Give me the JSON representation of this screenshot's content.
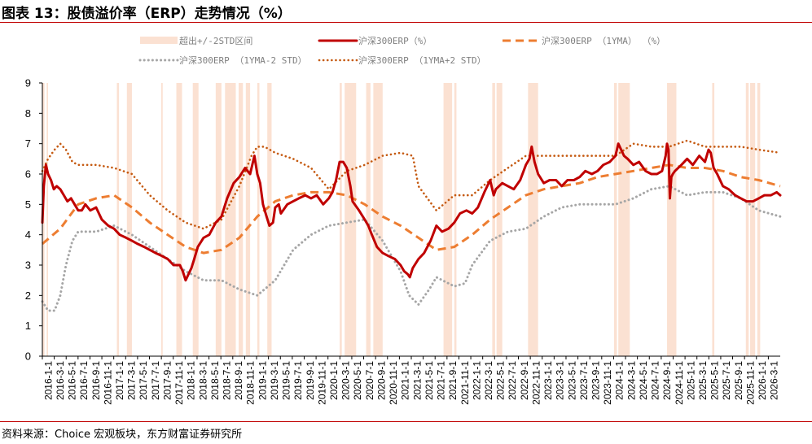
{
  "title": "图表 13：股债溢价率（ERP）走势情况（%）",
  "source": "资料来源：Choice 宏观板块，东方财富证券研究所",
  "colors": {
    "erp": "#c00000",
    "ma": "#ed7d31",
    "minus2std": "#a6a6a6",
    "plus2std": "#c55a11",
    "band": "#fbe1d2",
    "axis": "#000000"
  },
  "chart_data": {
    "type": "line",
    "ylim": [
      0,
      9
    ],
    "yticks": [
      "0",
      "1",
      "2",
      "3",
      "4",
      "5",
      "6",
      "7",
      "8",
      "9"
    ],
    "xticks": [
      "2016-1-1",
      "2016-3-1",
      "2016-5-1",
      "2016-7-1",
      "2016-9-1",
      "2016-11-1",
      "2017-1-1",
      "2017-3-1",
      "2017-5-1",
      "2017-7-1",
      "2017-9-1",
      "2017-11-1",
      "2018-1-1",
      "2018-3-1",
      "2018-5-1",
      "2018-7-1",
      "2018-9-1",
      "2018-11-1",
      "2019-1-1",
      "2019-3-1",
      "2019-5-1",
      "2019-7-1",
      "2019-9-1",
      "2019-11-1",
      "2020-1-1",
      "2020-3-1",
      "2020-5-1",
      "2020-7-1",
      "2020-9-1",
      "2020-11-1",
      "2021-1-1",
      "2021-3-1",
      "2021-5-1",
      "2021-7-1",
      "2021-9-1",
      "2021-11-1",
      "2022-1-1",
      "2022-3-1",
      "2022-5-1",
      "2022-7-1",
      "2022-9-1",
      "2022-11-1",
      "2023-1-1",
      "2023-3-1",
      "2023-5-1",
      "2023-7-1",
      "2023-9-1",
      "2023-11-1",
      "2024-1-1",
      "2024-3-1",
      "2024-5-1",
      "2024-7-1",
      "2024-9-1",
      "2024-11-1",
      "2025-1-1",
      "2025-3-1",
      "2025-5-1",
      "2025-7-1",
      "2025-9-1",
      "2025-11-1",
      "2026-1-1",
      "2026-3-1"
    ],
    "x_range": [
      2016.0,
      2026.3
    ],
    "legend": [
      {
        "name": "超出+/-2STD区间",
        "style": "band"
      },
      {
        "name": "沪深300ERP（%）",
        "style": "solid"
      },
      {
        "name": "沪深300ERP （1YMA） （%）",
        "style": "dashed"
      },
      {
        "name": "沪深300ERP （1YMA-2 STD）",
        "style": "dotted-grey"
      },
      {
        "name": "沪深300ERP （1YMA+2 STD）",
        "style": "dotted-orange"
      }
    ],
    "legend_position": "top",
    "bands": [
      [
        2016.0,
        2016.03
      ],
      [
        2016.06,
        2016.08
      ],
      [
        2017.04,
        2017.07
      ],
      [
        2017.18,
        2017.25
      ],
      [
        2017.66,
        2017.68
      ],
      [
        2017.87,
        2017.95
      ],
      [
        2018.1,
        2018.18
      ],
      [
        2018.42,
        2018.5
      ],
      [
        2018.55,
        2018.7
      ],
      [
        2018.74,
        2018.8
      ],
      [
        2018.84,
        2018.9
      ],
      [
        2019.0,
        2019.03
      ],
      [
        2019.14,
        2019.2
      ],
      [
        2020.15,
        2020.18
      ],
      [
        2020.22,
        2020.38
      ],
      [
        2020.52,
        2020.58
      ],
      [
        2020.62,
        2020.75
      ],
      [
        2021.6,
        2021.72
      ],
      [
        2021.75,
        2021.78
      ],
      [
        2022.28,
        2022.32
      ],
      [
        2022.34,
        2022.42
      ],
      [
        2022.78,
        2022.92
      ],
      [
        2023.98,
        2024.02
      ],
      [
        2024.04,
        2024.2
      ],
      [
        2024.72,
        2024.85
      ],
      [
        2025.35,
        2025.38
      ],
      [
        2025.82,
        2025.86
      ],
      [
        2025.88,
        2025.95
      ],
      [
        2025.98,
        2026.02
      ]
    ],
    "series": [
      {
        "name": "沪深300ERP（%）",
        "x": [
          2016.0,
          2016.02,
          2016.05,
          2016.08,
          2016.12,
          2016.16,
          2016.2,
          2016.25,
          2016.3,
          2016.35,
          2016.4,
          2016.45,
          2016.5,
          2016.55,
          2016.6,
          2016.67,
          2016.75,
          2016.83,
          2016.92,
          2017.0,
          2017.08,
          2017.17,
          2017.25,
          2017.33,
          2017.42,
          2017.5,
          2017.58,
          2017.67,
          2017.75,
          2017.83,
          2017.92,
          2017.96,
          2018.0,
          2018.04,
          2018.08,
          2018.12,
          2018.17,
          2018.25,
          2018.33,
          2018.42,
          2018.5,
          2018.58,
          2018.67,
          2018.75,
          2018.83,
          2018.9,
          2018.96,
          2019.0,
          2019.04,
          2019.08,
          2019.13,
          2019.17,
          2019.22,
          2019.25,
          2019.3,
          2019.33,
          2019.42,
          2019.5,
          2019.58,
          2019.67,
          2019.75,
          2019.83,
          2019.92,
          2020.0,
          2020.05,
          2020.1,
          2020.15,
          2020.2,
          2020.25,
          2020.3,
          2020.33,
          2020.42,
          2020.5,
          2020.55,
          2020.6,
          2020.67,
          2020.75,
          2020.83,
          2020.92,
          2021.0,
          2021.05,
          2021.1,
          2021.13,
          2021.17,
          2021.25,
          2021.33,
          2021.42,
          2021.5,
          2021.58,
          2021.67,
          2021.75,
          2021.83,
          2021.92,
          2022.0,
          2022.08,
          2022.17,
          2022.25,
          2022.3,
          2022.33,
          2022.42,
          2022.5,
          2022.58,
          2022.67,
          2022.75,
          2022.8,
          2022.83,
          2022.87,
          2022.92,
          2023.0,
          2023.08,
          2023.17,
          2023.25,
          2023.33,
          2023.42,
          2023.5,
          2023.58,
          2023.67,
          2023.75,
          2023.83,
          2023.92,
          2024.0,
          2024.04,
          2024.08,
          2024.12,
          2024.17,
          2024.25,
          2024.33,
          2024.42,
          2024.5,
          2024.58,
          2024.65,
          2024.7,
          2024.72,
          2024.74,
          2024.76,
          2024.78,
          2024.8,
          2024.83,
          2024.92,
          2025.0,
          2025.08,
          2025.17,
          2025.25,
          2025.3,
          2025.33,
          2025.37,
          2025.42,
          2025.5,
          2025.58,
          2025.67,
          2025.75,
          2025.83,
          2025.92,
          2026.0,
          2026.08,
          2026.17,
          2026.25,
          2026.3
        ],
        "values": [
          4.4,
          5.6,
          6.3,
          6.0,
          5.8,
          5.5,
          5.6,
          5.5,
          5.3,
          5.1,
          5.2,
          5.0,
          4.8,
          4.8,
          5.0,
          4.8,
          4.9,
          4.5,
          4.3,
          4.2,
          4.0,
          3.9,
          3.8,
          3.7,
          3.6,
          3.5,
          3.4,
          3.3,
          3.2,
          3.0,
          3.0,
          2.8,
          2.5,
          2.7,
          2.9,
          3.2,
          3.6,
          3.9,
          4.0,
          4.4,
          4.6,
          5.2,
          5.7,
          5.9,
          6.2,
          6.0,
          6.6,
          6.0,
          5.7,
          5.0,
          4.6,
          4.3,
          4.4,
          4.9,
          5.0,
          4.7,
          5.0,
          5.1,
          5.2,
          5.3,
          5.2,
          5.3,
          5.0,
          5.2,
          5.4,
          5.8,
          6.4,
          6.4,
          6.2,
          5.6,
          5.1,
          4.8,
          4.5,
          4.3,
          4.0,
          3.6,
          3.4,
          3.3,
          3.2,
          3.0,
          2.8,
          2.7,
          2.6,
          2.9,
          3.2,
          3.4,
          3.8,
          4.3,
          4.1,
          4.2,
          4.4,
          4.7,
          4.8,
          4.7,
          4.9,
          5.4,
          5.8,
          5.3,
          5.5,
          5.7,
          5.6,
          5.5,
          5.8,
          6.3,
          6.5,
          6.9,
          6.4,
          6.0,
          5.7,
          5.8,
          5.8,
          5.6,
          5.8,
          5.8,
          5.9,
          6.1,
          6.0,
          6.1,
          6.3,
          6.4,
          6.6,
          7.0,
          6.8,
          6.6,
          6.5,
          6.3,
          6.4,
          6.1,
          6.0,
          6.0,
          6.1,
          6.6,
          7.0,
          6.8,
          5.2,
          5.9,
          6.0,
          6.1,
          6.3,
          6.5,
          6.3,
          6.6,
          6.4,
          6.8,
          6.7,
          6.2,
          6.0,
          5.6,
          5.5,
          5.3,
          5.2,
          5.1,
          5.1,
          5.2,
          5.3,
          5.3,
          5.4,
          5.3
        ]
      },
      {
        "name": "沪深300ERP （1YMA） （%）",
        "x": [
          2016.0,
          2016.25,
          2016.5,
          2016.75,
          2017.0,
          2017.25,
          2017.5,
          2017.75,
          2018.0,
          2018.25,
          2018.5,
          2018.75,
          2019.0,
          2019.25,
          2019.5,
          2019.75,
          2020.0,
          2020.25,
          2020.5,
          2020.75,
          2021.0,
          2021.25,
          2021.5,
          2021.75,
          2022.0,
          2022.25,
          2022.5,
          2022.75,
          2023.0,
          2023.25,
          2023.5,
          2023.75,
          2024.0,
          2024.25,
          2024.5,
          2024.75,
          2025.0,
          2025.25,
          2025.5,
          2025.75,
          2026.0,
          2026.3
        ],
        "values": [
          3.7,
          4.2,
          5.0,
          5.2,
          5.3,
          4.9,
          4.4,
          4.0,
          3.6,
          3.4,
          3.5,
          3.9,
          4.6,
          5.1,
          5.3,
          5.4,
          5.4,
          5.3,
          5.0,
          4.6,
          4.3,
          3.9,
          3.5,
          3.6,
          4.0,
          4.5,
          4.9,
          5.3,
          5.5,
          5.6,
          5.7,
          5.9,
          6.0,
          6.1,
          6.2,
          6.3,
          6.2,
          6.2,
          6.1,
          5.9,
          5.8,
          5.6
        ]
      },
      {
        "name": "沪深300ERP （1YMA-2 STD）",
        "x": [
          2016.0,
          2016.08,
          2016.17,
          2016.25,
          2016.33,
          2016.42,
          2016.5,
          2016.75,
          2017.0,
          2017.25,
          2017.5,
          2017.75,
          2018.0,
          2018.25,
          2018.5,
          2018.75,
          2019.0,
          2019.25,
          2019.5,
          2019.75,
          2020.0,
          2020.25,
          2020.5,
          2020.75,
          2021.0,
          2021.12,
          2021.25,
          2021.4,
          2021.5,
          2021.75,
          2021.9,
          2022.0,
          2022.25,
          2022.5,
          2022.75,
          2023.0,
          2023.25,
          2023.5,
          2023.75,
          2024.0,
          2024.25,
          2024.5,
          2024.75,
          2025.0,
          2025.25,
          2025.5,
          2025.75,
          2026.0,
          2026.3
        ],
        "values": [
          1.8,
          1.5,
          1.5,
          2.0,
          3.0,
          3.8,
          4.1,
          4.1,
          4.3,
          4.0,
          3.6,
          3.2,
          2.8,
          2.5,
          2.5,
          2.2,
          2.0,
          2.5,
          3.5,
          4.0,
          4.3,
          4.4,
          4.5,
          3.8,
          2.8,
          2.0,
          1.7,
          2.2,
          2.6,
          2.3,
          2.4,
          3.0,
          3.8,
          4.1,
          4.2,
          4.6,
          4.9,
          5.0,
          5.0,
          5.0,
          5.2,
          5.5,
          5.6,
          5.3,
          5.4,
          5.4,
          5.2,
          4.8,
          4.6
        ]
      },
      {
        "name": "沪深300ERP （1YMA+2 STD）",
        "x": [
          2016.0,
          2016.08,
          2016.17,
          2016.25,
          2016.33,
          2016.42,
          2016.5,
          2016.75,
          2017.0,
          2017.25,
          2017.5,
          2017.75,
          2018.0,
          2018.25,
          2018.5,
          2018.75,
          2018.92,
          2019.0,
          2019.1,
          2019.25,
          2019.5,
          2019.75,
          2020.0,
          2020.25,
          2020.5,
          2020.75,
          2021.0,
          2021.17,
          2021.25,
          2021.5,
          2021.75,
          2022.0,
          2022.25,
          2022.5,
          2022.75,
          2023.0,
          2023.25,
          2023.5,
          2023.75,
          2024.0,
          2024.25,
          2024.5,
          2024.75,
          2025.0,
          2025.25,
          2025.5,
          2025.75,
          2026.0,
          2026.3
        ],
        "values": [
          6.1,
          6.5,
          6.8,
          7.0,
          6.8,
          6.4,
          6.3,
          6.3,
          6.2,
          6.0,
          5.3,
          4.8,
          4.4,
          4.2,
          4.5,
          5.6,
          6.6,
          6.9,
          6.9,
          6.7,
          6.5,
          6.2,
          5.5,
          6.1,
          6.3,
          6.6,
          6.7,
          6.6,
          5.6,
          4.8,
          5.3,
          5.3,
          5.8,
          6.2,
          6.6,
          6.6,
          6.6,
          6.6,
          6.6,
          6.6,
          7.0,
          6.9,
          6.9,
          7.1,
          6.9,
          6.9,
          6.9,
          6.8,
          6.7
        ]
      }
    ]
  }
}
